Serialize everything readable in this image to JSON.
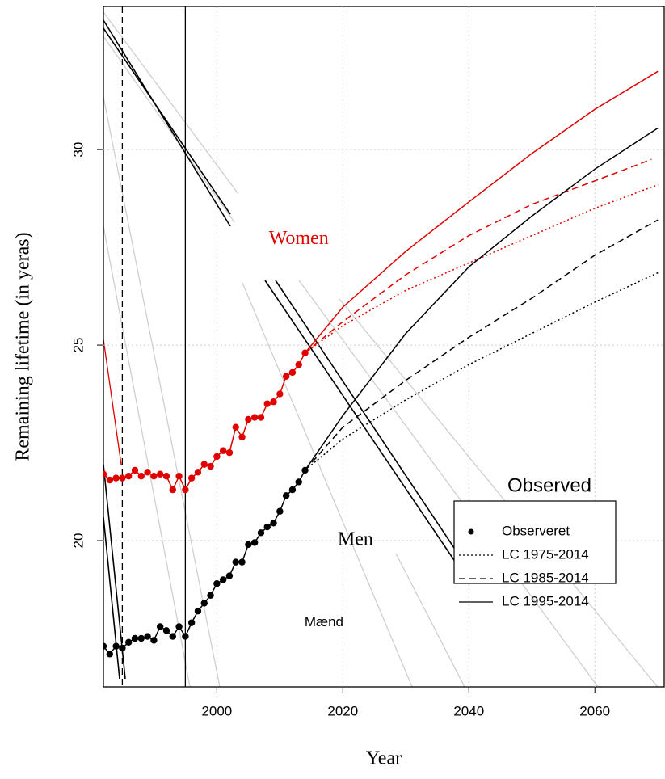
{
  "chart_data": {
    "type": "line",
    "xlabel": "Year",
    "ylabel": "Remaining lifetime (in yeras)",
    "xlim": [
      1982,
      2071
    ],
    "ylim": [
      16.26,
      33.66
    ],
    "xticks": [
      2000,
      2020,
      2040,
      2060
    ],
    "yticks": [
      20,
      25,
      30
    ],
    "grid": true,
    "vlines": [
      {
        "x": 1985,
        "style": "dashed"
      },
      {
        "x": 1995,
        "style": "solid"
      }
    ],
    "annotations": [
      {
        "text": "Women",
        "x": 2013,
        "y": 27.7,
        "color": "#e00000",
        "font": "serif"
      },
      {
        "text": "Men",
        "x": 2022,
        "y": 20.0,
        "color": "#000000",
        "font": "serif"
      },
      {
        "text": "Mænd",
        "x": 2017,
        "y": 17.9,
        "color": "#000000",
        "font": "sans"
      }
    ],
    "legend": {
      "title": "Observed",
      "items": [
        {
          "label": "Observeret",
          "style": "points"
        },
        {
          "label": "LC 1975-2014",
          "style": "dotted"
        },
        {
          "label": "LC 1985-2014",
          "style": "dashed"
        },
        {
          "label": "LC 1995-2014",
          "style": "solid"
        }
      ]
    },
    "series": [
      {
        "color": "#e00000",
        "style": "points",
        "x": [
          1982,
          1983,
          1984,
          1985,
          1986,
          1987,
          1988,
          1989,
          1990,
          1991,
          1992,
          1993,
          1994,
          1995,
          1996,
          1997,
          1998,
          1999,
          2000,
          2001,
          2002,
          2003,
          2004,
          2005,
          2006,
          2007,
          2008,
          2009,
          2010,
          2011,
          2012,
          2013,
          2014
        ],
        "values": [
          21.7,
          21.55,
          21.6,
          21.6,
          21.65,
          21.8,
          21.65,
          21.75,
          21.65,
          21.7,
          21.65,
          21.3,
          21.65,
          21.3,
          21.6,
          21.75,
          21.95,
          21.9,
          22.15,
          22.3,
          22.25,
          22.9,
          22.65,
          23.1,
          23.15,
          23.15,
          23.5,
          23.55,
          23.75,
          24.2,
          24.3,
          24.5,
          24.8
        ]
      },
      {
        "color": "#000000",
        "style": "points",
        "x": [
          1982,
          1983,
          1984,
          1985,
          1986,
          1987,
          1988,
          1989,
          1990,
          1991,
          1992,
          1993,
          1994,
          1995,
          1996,
          1997,
          1998,
          1999,
          2000,
          2001,
          2002,
          2003,
          2004,
          2005,
          2006,
          2007,
          2008,
          2009,
          2010,
          2011,
          2012,
          2013,
          2014
        ],
        "values": [
          17.3,
          17.1,
          17.3,
          17.25,
          17.4,
          17.5,
          17.5,
          17.55,
          17.45,
          17.8,
          17.7,
          17.55,
          17.8,
          17.55,
          17.9,
          18.2,
          18.4,
          18.6,
          18.9,
          19.0,
          19.1,
          19.45,
          19.45,
          19.9,
          19.95,
          20.2,
          20.35,
          20.45,
          20.75,
          21.15,
          21.3,
          21.5,
          21.8
        ]
      },
      {
        "color": "#e00000",
        "style": "solid",
        "x": [
          2014,
          2020,
          2030,
          2040,
          2050,
          2060,
          2070
        ],
        "values": [
          24.8,
          25.97,
          27.4,
          28.66,
          29.9,
          31.03,
          32.0
        ]
      },
      {
        "color": "#e00000",
        "style": "dashed",
        "x": [
          2014,
          2020,
          2030,
          2040,
          2050,
          2060,
          2069
        ],
        "values": [
          24.8,
          25.6,
          26.8,
          27.8,
          28.6,
          29.2,
          29.75
        ]
      },
      {
        "color": "#e00000",
        "style": "dotted",
        "x": [
          2014,
          2020,
          2030,
          2040,
          2050,
          2060,
          2070
        ],
        "values": [
          24.8,
          25.5,
          26.4,
          27.1,
          27.8,
          28.5,
          29.1
        ]
      },
      {
        "color": "#000000",
        "style": "solid",
        "x": [
          2014,
          2020,
          2030,
          2040,
          2050,
          2060,
          2070
        ],
        "values": [
          21.8,
          23.2,
          25.3,
          27.0,
          28.3,
          29.5,
          30.55
        ]
      },
      {
        "color": "#000000",
        "style": "dashed",
        "x": [
          2014,
          2020,
          2030,
          2040,
          2050,
          2060,
          2070
        ],
        "values": [
          21.8,
          22.9,
          24.1,
          25.2,
          26.2,
          27.3,
          28.2
        ]
      },
      {
        "color": "#000000",
        "style": "dotted",
        "x": [
          2014,
          2020,
          2030,
          2040,
          2050,
          2060,
          2070
        ],
        "values": [
          21.8,
          22.6,
          23.6,
          24.5,
          25.3,
          26.1,
          26.85
        ]
      }
    ]
  }
}
